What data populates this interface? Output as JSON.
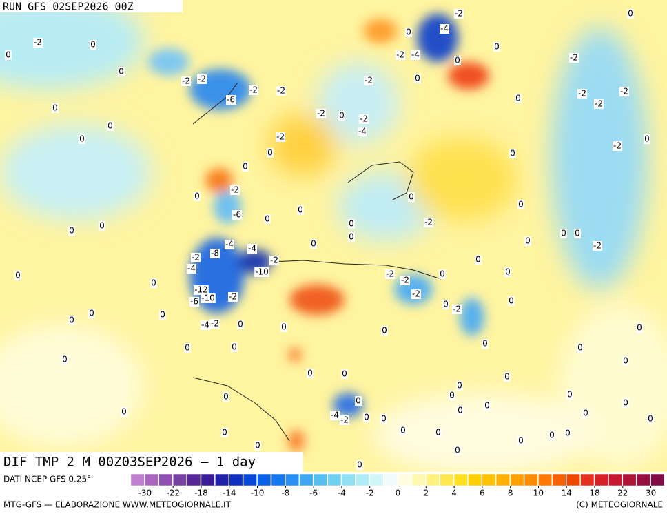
{
  "header": {
    "run": "RUN GFS 02SEP2026 00Z"
  },
  "map": {
    "title": "DIF TMP 2 M 00Z03SEP2026 — 1 day",
    "contour_labels": [
      0,
      -2,
      0,
      0,
      -2,
      -2,
      -6,
      -2,
      -2,
      0,
      0,
      0,
      -2,
      0,
      0,
      -2,
      0,
      -6,
      0,
      0,
      0,
      0,
      -4,
      -4,
      -8,
      -2,
      -4,
      -2,
      -10,
      0,
      0,
      -12,
      -10,
      -6,
      -2,
      0,
      0,
      0,
      -2,
      -4,
      0,
      0,
      0,
      0,
      0,
      0,
      -2,
      -2,
      -2,
      -2,
      0,
      -2,
      0,
      0,
      0,
      0,
      0,
      0,
      0,
      0,
      -2,
      0,
      0,
      -2,
      -2,
      -2,
      -2,
      -2,
      0,
      0,
      0,
      0,
      -4,
      -2,
      0,
      -4,
      -2,
      0,
      -2,
      -2,
      -2,
      -4,
      0,
      0,
      0,
      0,
      0,
      0,
      0,
      0,
      -2,
      -4,
      0,
      0,
      0,
      0,
      0,
      0,
      0,
      0,
      0,
      0,
      0,
      0,
      0,
      0,
      0,
      0,
      0,
      0,
      0,
      0,
      0,
      0,
      0,
      0,
      0,
      0
    ]
  },
  "colorbar": {
    "source": "DATI NCEP GFS 0.25°",
    "colors": [
      "#c080d0",
      "#a868c0",
      "#9050b0",
      "#7840a0",
      "#582898",
      "#3a1c98",
      "#2020a8",
      "#1030c0",
      "#0848d8",
      "#0a60e8",
      "#1478f0",
      "#2890f0",
      "#40a8f0",
      "#58c0f0",
      "#70d0f0",
      "#90e0f4",
      "#b0ecf6",
      "#d0f6f8",
      "#f0fcfc",
      "#fffce0",
      "#fff8b0",
      "#fff080",
      "#ffe850",
      "#ffe020",
      "#ffd000",
      "#ffc000",
      "#ffb000",
      "#ffa000",
      "#ff8c00",
      "#ff7800",
      "#f86000",
      "#f04800",
      "#e83020",
      "#d82028",
      "#c81830",
      "#b01438",
      "#981040",
      "#800c48"
    ],
    "ticks": [
      -30,
      -22,
      -18,
      -14,
      -10,
      -8,
      -6,
      -4,
      -2,
      0,
      2,
      4,
      6,
      8,
      10,
      14,
      18,
      22,
      30
    ]
  },
  "footer": {
    "left": "MTG-GFS — ELABORAZIONE WWW.METEOGIORNALE.IT",
    "right": "(C) METEOGIORNALE"
  }
}
